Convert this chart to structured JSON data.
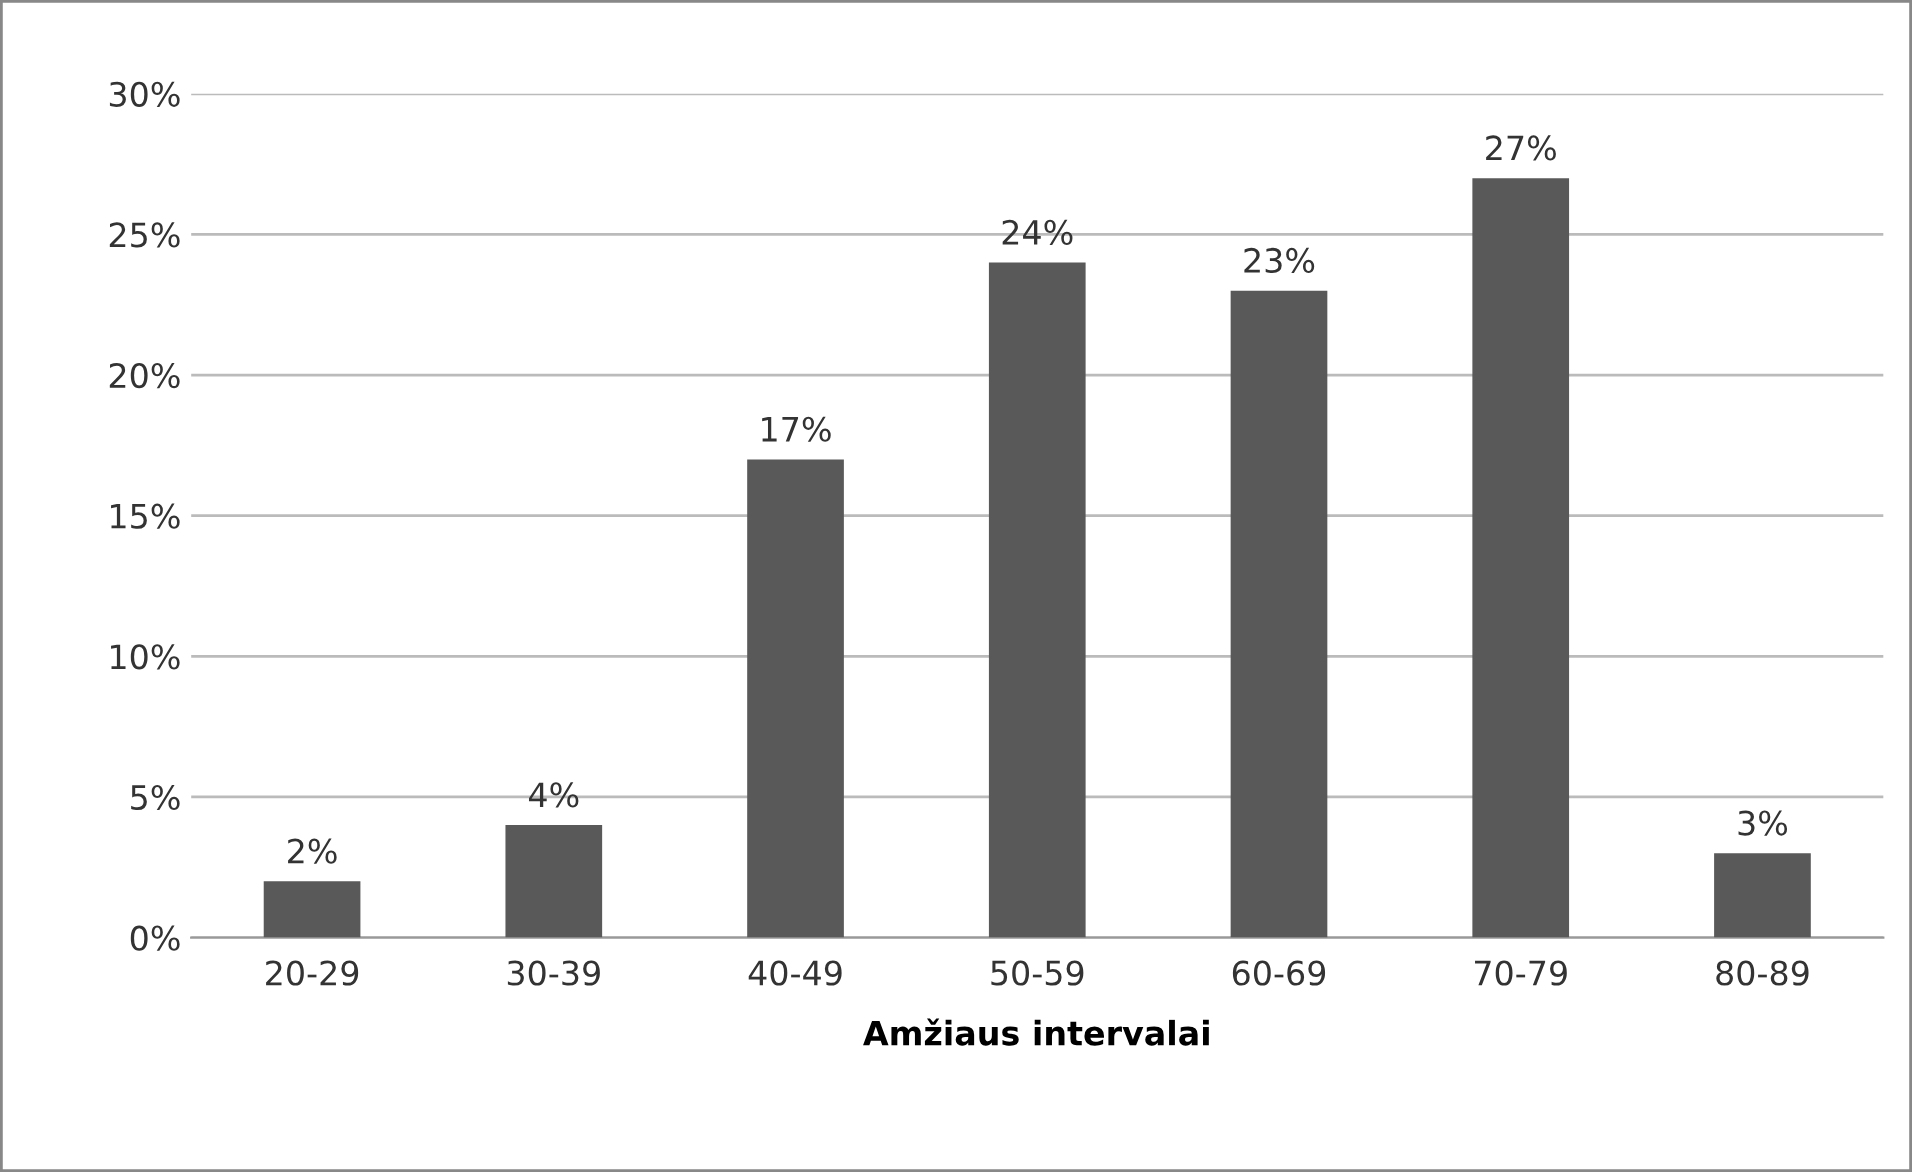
{
  "chart_data": {
    "type": "bar",
    "xlabel": "Amžiaus intervalai",
    "categories": [
      "20-29",
      "30-39",
      "40-49",
      "50-59",
      "60-69",
      "70-79",
      "80-89"
    ],
    "values": [
      2,
      4,
      17,
      24,
      23,
      27,
      3
    ],
    "value_labels": [
      "2%",
      "4%",
      "17%",
      "24%",
      "23%",
      "27%",
      "3%"
    ],
    "color": "#595959",
    "ylim": [
      0,
      30
    ],
    "yticks": [
      {
        "value": 0,
        "label": "0%"
      },
      {
        "value": 5,
        "label": "5%"
      },
      {
        "value": 10,
        "label": "10%"
      },
      {
        "value": 15,
        "label": "15%"
      },
      {
        "value": 20,
        "label": "20%"
      },
      {
        "value": 25,
        "label": "25%"
      },
      {
        "value": 30,
        "label": "30%"
      }
    ],
    "grid": "y"
  }
}
